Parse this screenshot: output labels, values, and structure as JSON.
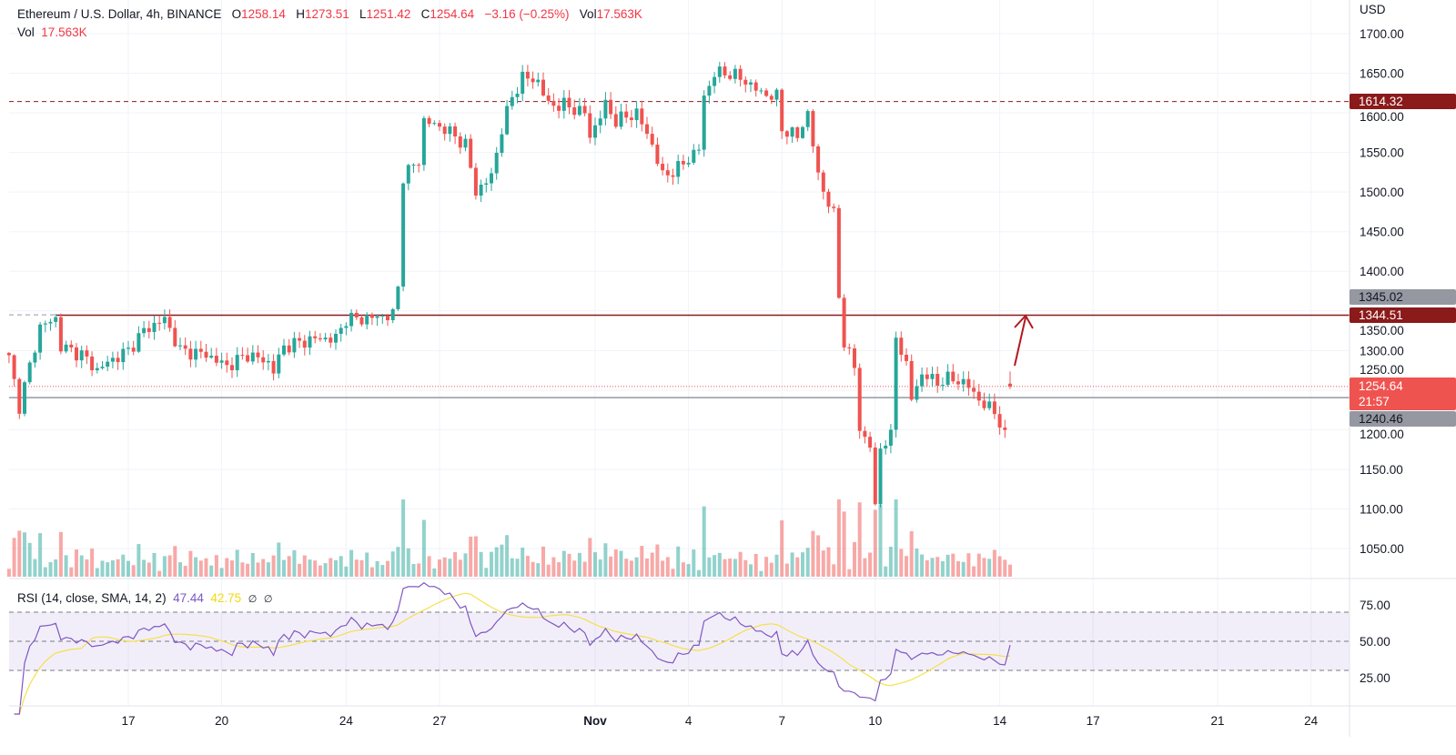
{
  "header": {
    "symbol": "Ethereum / U.S. Dollar, 4h, BINANCE",
    "o_label": "O",
    "o": "1258.14",
    "h_label": "H",
    "h": "1273.51",
    "l_label": "L",
    "l": "1251.42",
    "c_label": "C",
    "c": "1254.64",
    "change": "−3.16 (−0.25%)",
    "vol_label": "Vol",
    "vol": "17.563K",
    "vol_line_label": "Vol",
    "vol_line_value": "17.563K"
  },
  "rsi_legend": {
    "label": "RSI (14, close, SMA, 14, 2)",
    "rsi": "47.44",
    "sma": "42.75",
    "na1": "∅",
    "na2": "∅"
  },
  "axis": {
    "currency": "USD"
  },
  "price_labels": {
    "level_1614": "1614.32",
    "level_1345": "1345.02",
    "level_1344": "1344.51",
    "last_price": "1254.64",
    "countdown": "21:57",
    "level_1240": "1240.46"
  },
  "colors": {
    "up": "#26a69a",
    "down": "#ef5350",
    "rsi": "#7e57c2",
    "rsi_sma": "#f5e04a",
    "level_dark_red": "#8b1a1a",
    "level_grey": "#9598a1"
  },
  "chart_data": {
    "type": "candlestick",
    "title": "Ethereum / U.S. Dollar, 4h, BINANCE",
    "ylabel": "USD",
    "ylim": [
      1020,
      1730
    ],
    "y_ticks": [
      "1700.00",
      "1650.00",
      "1600.00",
      "1550.00",
      "1500.00",
      "1450.00",
      "1400.00",
      "1350.00",
      "1300.00",
      "1250.00",
      "1200.00",
      "1150.00",
      "1100.00",
      "1050.00"
    ],
    "x_ticks": [
      "17",
      "20",
      "24",
      "27",
      "Nov",
      "4",
      "7",
      "10",
      "14",
      "17",
      "21",
      "24"
    ],
    "rsi_ticks": [
      "75.00",
      "50.00",
      "25.00"
    ],
    "rsi_levels": [
      70,
      50,
      30
    ],
    "grid": true,
    "close_path": [
      [
        "10-13 04:00",
        1290
      ],
      [
        "10-13 12:00",
        1230
      ],
      [
        "10-14 04:00",
        1330
      ],
      [
        "10-14 16:00",
        1340
      ],
      [
        "10-14 20:00",
        1305
      ],
      [
        "10-15 12:00",
        1295
      ],
      [
        "10-16 00:00",
        1275
      ],
      [
        "10-16 08:00",
        1285
      ],
      [
        "10-17 00:00",
        1300
      ],
      [
        "10-17 12:00",
        1325
      ],
      [
        "10-18 04:00",
        1340
      ],
      [
        "10-18 16:00",
        1300
      ],
      [
        "10-19 12:00",
        1295
      ],
      [
        "10-20 04:00",
        1280
      ],
      [
        "10-20 20:00",
        1295
      ],
      [
        "10-21 12:00",
        1285
      ],
      [
        "10-21 16:00",
        1275
      ],
      [
        "10-22 00:00",
        1305
      ],
      [
        "10-22 12:00",
        1310
      ],
      [
        "10-23 00:00",
        1315
      ],
      [
        "10-23 16:00",
        1315
      ],
      [
        "10-24 00:00",
        1340
      ],
      [
        "10-24 12:00",
        1340
      ],
      [
        "10-25 12:00",
        1345
      ],
      [
        "10-25 16:00",
        1380
      ],
      [
        "10-25 20:00",
        1520
      ],
      [
        "10-26 08:00",
        1540
      ],
      [
        "10-26 12:00",
        1590
      ],
      [
        "10-27 04:00",
        1580
      ],
      [
        "10-27 20:00",
        1560
      ],
      [
        "10-28 04:00",
        1500
      ],
      [
        "10-28 16:00",
        1520
      ],
      [
        "10-29 00:00",
        1580
      ],
      [
        "10-29 08:00",
        1620
      ],
      [
        "10-29 16:00",
        1645
      ],
      [
        "10-30 04:00",
        1640
      ],
      [
        "10-30 12:00",
        1610
      ],
      [
        "10-31 00:00",
        1610
      ],
      [
        "10-31 16:00",
        1600
      ],
      [
        "10-31 20:00",
        1570
      ],
      [
        "11-01 08:00",
        1610
      ],
      [
        "11-01 16:00",
        1590
      ],
      [
        "11-02 08:00",
        1600
      ],
      [
        "11-02 20:00",
        1560
      ],
      [
        "11-03 04:00",
        1520
      ],
      [
        "11-03 16:00",
        1530
      ],
      [
        "11-04 08:00",
        1555
      ],
      [
        "11-04 12:00",
        1620
      ],
      [
        "11-04 20:00",
        1650
      ],
      [
        "11-05 08:00",
        1650
      ],
      [
        "11-05 20:00",
        1640
      ],
      [
        "11-06 08:00",
        1625
      ],
      [
        "11-06 20:00",
        1620
      ],
      [
        "11-07 00:00",
        1580
      ],
      [
        "11-07 12:00",
        1570
      ],
      [
        "11-07 20:00",
        1600
      ],
      [
        "11-08 04:00",
        1520
      ],
      [
        "11-08 16:00",
        1470
      ],
      [
        "11-08 20:00",
        1370
      ],
      [
        "11-09 00:00",
        1310
      ],
      [
        "11-09 08:00",
        1280
      ],
      [
        "11-09 12:00",
        1200
      ],
      [
        "11-09 20:00",
        1180
      ],
      [
        "11-10 00:00",
        1100
      ],
      [
        "11-10 04:00",
        1180
      ],
      [
        "11-10 12:00",
        1190
      ],
      [
        "11-10 16:00",
        1320
      ],
      [
        "11-11 00:00",
        1280
      ],
      [
        "11-11 04:00",
        1240
      ],
      [
        "11-11 12:00",
        1270
      ],
      [
        "11-12 00:00",
        1260
      ],
      [
        "11-12 12:00",
        1265
      ],
      [
        "11-13 00:00",
        1255
      ],
      [
        "11-13 12:00",
        1230
      ],
      [
        "11-13 20:00",
        1225
      ],
      [
        "11-14 04:00",
        1190
      ],
      [
        "11-14 08:00",
        1254.64
      ]
    ],
    "last_candle": {
      "open": 1258.14,
      "high": 1273.51,
      "low": 1251.42,
      "close": 1254.64,
      "volume": "17.563K"
    },
    "horizontal_levels": [
      {
        "price": 1614.32,
        "style": "dashed",
        "color": "#8b1a1a"
      },
      {
        "price": 1344.51,
        "style": "solid",
        "color": "#8b1a1a"
      },
      {
        "price": 1345.02,
        "style": "dashed",
        "color": "#9598a1"
      },
      {
        "price": 1240.46,
        "style": "solid",
        "color": "#9598a1"
      },
      {
        "price": 1254.64,
        "style": "dotted",
        "color": "#ef5350"
      }
    ]
  }
}
